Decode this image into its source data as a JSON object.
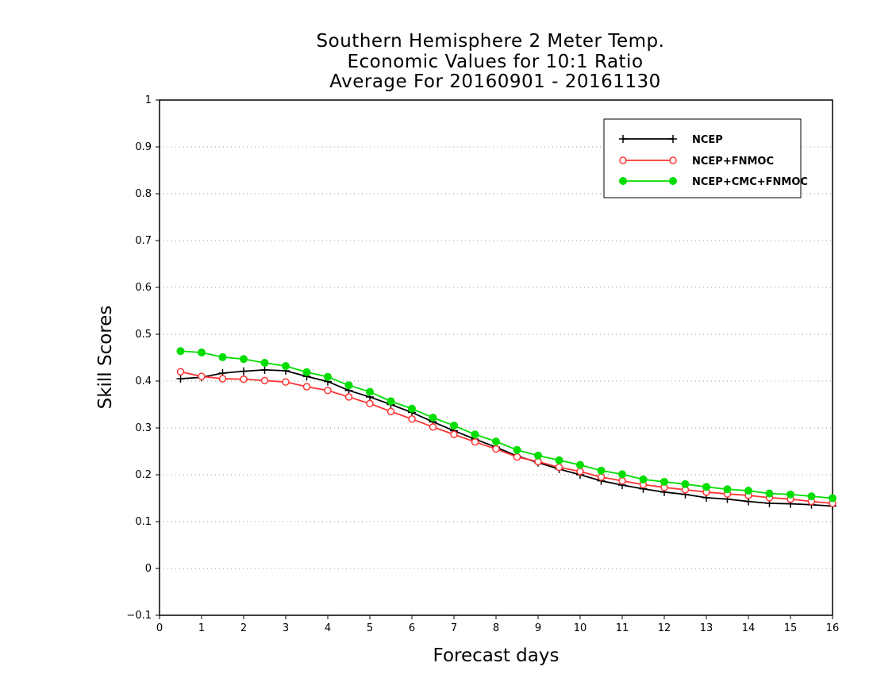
{
  "chart_data": {
    "type": "line",
    "title": [
      "Southern Hemisphere 2 Meter Temp.",
      "Economic Values for 10:1 Ratio",
      "Average For 20160901 - 20161130"
    ],
    "xlabel": "Forecast days",
    "ylabel": "Skill Scores",
    "xlim": [
      0,
      16
    ],
    "ylim": [
      -0.1,
      1
    ],
    "xticks": [
      0,
      1,
      2,
      3,
      4,
      5,
      6,
      7,
      8,
      9,
      10,
      11,
      12,
      13,
      14,
      15,
      16
    ],
    "yticks": [
      -0.1,
      0,
      0.1,
      0.2,
      0.3,
      0.4,
      0.5,
      0.6,
      0.7,
      0.8,
      0.9,
      1
    ],
    "ytick_labels": [
      "−0.1",
      "0",
      "0.1",
      "0.2",
      "0.3",
      "0.4",
      "0.5",
      "0.6",
      "0.7",
      "0.8",
      "0.9",
      "1"
    ],
    "grid": "horizontal dotted",
    "legend_position": "top-right",
    "x": [
      0.5,
      1,
      1.5,
      2,
      2.5,
      3,
      3.5,
      4,
      4.5,
      5,
      5.5,
      6,
      6.5,
      7,
      7.5,
      8,
      8.5,
      9,
      9.5,
      10,
      10.5,
      11,
      11.5,
      12,
      12.5,
      13,
      13.5,
      14,
      14.5,
      15,
      15.5,
      16
    ],
    "series": [
      {
        "name": "NCEP",
        "color": "#000000",
        "marker": "plus",
        "values": [
          0.405,
          0.408,
          0.417,
          0.421,
          0.424,
          0.422,
          0.41,
          0.399,
          0.38,
          0.366,
          0.35,
          0.333,
          0.313,
          0.294,
          0.276,
          0.259,
          0.24,
          0.226,
          0.212,
          0.2,
          0.187,
          0.178,
          0.17,
          0.163,
          0.158,
          0.151,
          0.148,
          0.143,
          0.139,
          0.138,
          0.136,
          0.133
        ]
      },
      {
        "name": "NCEP+FNMOC",
        "color": "#ff3333",
        "marker": "open-circle",
        "values": [
          0.42,
          0.41,
          0.405,
          0.404,
          0.401,
          0.398,
          0.388,
          0.38,
          0.366,
          0.352,
          0.335,
          0.319,
          0.302,
          0.286,
          0.27,
          0.255,
          0.238,
          0.228,
          0.216,
          0.207,
          0.195,
          0.187,
          0.179,
          0.173,
          0.168,
          0.163,
          0.159,
          0.156,
          0.151,
          0.148,
          0.143,
          0.139
        ]
      },
      {
        "name": "NCEP+CMC+FNMOC",
        "color": "#00dd00",
        "marker": "filled-circle",
        "values": [
          0.464,
          0.461,
          0.451,
          0.447,
          0.439,
          0.432,
          0.419,
          0.409,
          0.391,
          0.377,
          0.357,
          0.341,
          0.322,
          0.305,
          0.286,
          0.271,
          0.253,
          0.241,
          0.231,
          0.221,
          0.209,
          0.201,
          0.19,
          0.185,
          0.18,
          0.174,
          0.169,
          0.166,
          0.16,
          0.158,
          0.154,
          0.15
        ]
      }
    ]
  }
}
